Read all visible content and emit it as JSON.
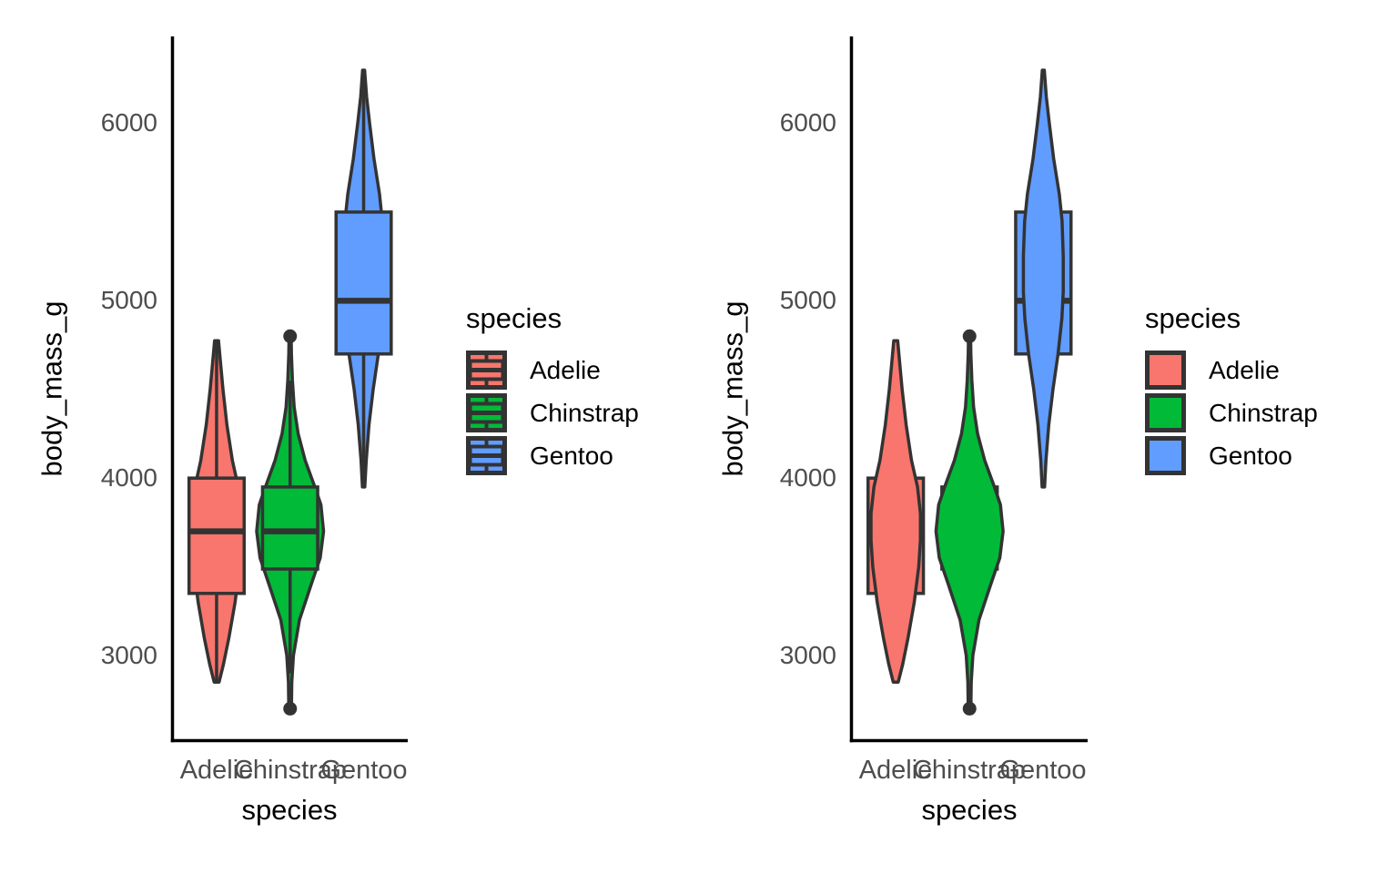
{
  "palette": {
    "adelie": "#F8766D",
    "chinstrap": "#00BA38",
    "gentoo": "#619CFF",
    "outline": "#333333",
    "axis_line": "#000000",
    "tick_label": "#4D4D4D",
    "title_text": "#000000",
    "background": "#FFFFFF"
  },
  "chart_data": [
    {
      "id": "left-panel",
      "type": "violin",
      "subtype": "violin with boxplot drawn on top",
      "layers": [
        "violin",
        "boxplot"
      ],
      "title": "",
      "xlabel": "species",
      "ylabel": "body_mass_g",
      "categories": [
        "Adelie",
        "Chinstrap",
        "Gentoo"
      ],
      "y_ticks": [
        6000,
        5000,
        4000,
        3000
      ],
      "ylim": [
        2520,
        6480
      ],
      "grid": "off",
      "legend": {
        "title": "species",
        "position": "right",
        "key_glyph": "boxplot-over-violin",
        "entries": [
          {
            "label": "Adelie",
            "color": "#F8766D"
          },
          {
            "label": "Chinstrap",
            "color": "#00BA38"
          },
          {
            "label": "Gentoo",
            "color": "#619CFF"
          }
        ]
      },
      "series": [
        {
          "name": "Adelie",
          "color": "#F8766D",
          "box": {
            "whisker_low": 2850,
            "q1": 3350,
            "median": 3700,
            "q3": 4000,
            "whisker_high": 4775,
            "outliers": []
          },
          "violin": {
            "min": 2850,
            "max": 4775,
            "max_width": 0.67,
            "profile": [
              [
                2850,
                0.1
              ],
              [
                2950,
                0.28
              ],
              [
                3100,
                0.5
              ],
              [
                3300,
                0.75
              ],
              [
                3500,
                0.93
              ],
              [
                3650,
                1.0
              ],
              [
                3800,
                1.0
              ],
              [
                3950,
                0.88
              ],
              [
                4100,
                0.64
              ],
              [
                4300,
                0.42
              ],
              [
                4500,
                0.26
              ],
              [
                4650,
                0.16
              ],
              [
                4775,
                0.08
              ]
            ]
          }
        },
        {
          "name": "Chinstrap",
          "color": "#00BA38",
          "box": {
            "whisker_low": 2900,
            "q1": 3487.5,
            "median": 3700,
            "q3": 3950,
            "whisker_high": 4550,
            "outliers": [
              2700,
              4800
            ]
          },
          "violin": {
            "min": 2700,
            "max": 4800,
            "max_width": 0.91,
            "profile": [
              [
                2700,
                0.04
              ],
              [
                2850,
                0.05
              ],
              [
                3000,
                0.1
              ],
              [
                3200,
                0.28
              ],
              [
                3400,
                0.63
              ],
              [
                3550,
                0.9
              ],
              [
                3700,
                1.0
              ],
              [
                3850,
                0.92
              ],
              [
                3950,
                0.74
              ],
              [
                4100,
                0.45
              ],
              [
                4250,
                0.24
              ],
              [
                4400,
                0.12
              ],
              [
                4550,
                0.07
              ],
              [
                4700,
                0.04
              ],
              [
                4800,
                0.03
              ]
            ]
          }
        },
        {
          "name": "Gentoo",
          "color": "#619CFF",
          "box": {
            "whisker_low": 3950,
            "q1": 4700,
            "median": 5000,
            "q3": 5500,
            "whisker_high": 6300,
            "outliers": []
          },
          "violin": {
            "min": 3950,
            "max": 6300,
            "max_width": 0.54,
            "profile": [
              [
                3950,
                0.06
              ],
              [
                4100,
                0.13
              ],
              [
                4300,
                0.27
              ],
              [
                4500,
                0.48
              ],
              [
                4700,
                0.74
              ],
              [
                4900,
                0.93
              ],
              [
                5050,
                1.0
              ],
              [
                5250,
                1.0
              ],
              [
                5450,
                0.94
              ],
              [
                5600,
                0.8
              ],
              [
                5800,
                0.52
              ],
              [
                6000,
                0.3
              ],
              [
                6150,
                0.15
              ],
              [
                6300,
                0.05
              ]
            ]
          }
        }
      ]
    },
    {
      "id": "right-panel",
      "type": "violin",
      "subtype": "boxplot with violin drawn on top",
      "layers": [
        "boxplot",
        "violin"
      ],
      "title": "",
      "xlabel": "species",
      "ylabel": "body_mass_g",
      "categories": [
        "Adelie",
        "Chinstrap",
        "Gentoo"
      ],
      "y_ticks": [
        6000,
        5000,
        4000,
        3000
      ],
      "ylim": [
        2520,
        6480
      ],
      "grid": "off",
      "legend": {
        "title": "species",
        "position": "right",
        "key_glyph": "violin-over-boxplot",
        "entries": [
          {
            "label": "Adelie",
            "color": "#F8766D"
          },
          {
            "label": "Chinstrap",
            "color": "#00BA38"
          },
          {
            "label": "Gentoo",
            "color": "#619CFF"
          }
        ]
      },
      "series": [
        {
          "name": "Adelie",
          "color": "#F8766D",
          "box": {
            "whisker_low": 2850,
            "q1": 3350,
            "median": 3700,
            "q3": 4000,
            "whisker_high": 4775,
            "outliers": []
          },
          "violin": {
            "min": 2850,
            "max": 4775,
            "max_width": 0.67,
            "profile": [
              [
                2850,
                0.1
              ],
              [
                2950,
                0.28
              ],
              [
                3100,
                0.5
              ],
              [
                3300,
                0.75
              ],
              [
                3500,
                0.93
              ],
              [
                3650,
                1.0
              ],
              [
                3800,
                1.0
              ],
              [
                3950,
                0.88
              ],
              [
                4100,
                0.64
              ],
              [
                4300,
                0.42
              ],
              [
                4500,
                0.26
              ],
              [
                4650,
                0.16
              ],
              [
                4775,
                0.08
              ]
            ]
          }
        },
        {
          "name": "Chinstrap",
          "color": "#00BA38",
          "box": {
            "whisker_low": 2900,
            "q1": 3487.5,
            "median": 3700,
            "q3": 3950,
            "whisker_high": 4550,
            "outliers": [
              2700,
              4800
            ]
          },
          "violin": {
            "min": 2700,
            "max": 4800,
            "max_width": 0.91,
            "profile": [
              [
                2700,
                0.04
              ],
              [
                2850,
                0.05
              ],
              [
                3000,
                0.1
              ],
              [
                3200,
                0.28
              ],
              [
                3400,
                0.63
              ],
              [
                3550,
                0.9
              ],
              [
                3700,
                1.0
              ],
              [
                3850,
                0.92
              ],
              [
                3950,
                0.74
              ],
              [
                4100,
                0.45
              ],
              [
                4250,
                0.24
              ],
              [
                4400,
                0.12
              ],
              [
                4550,
                0.07
              ],
              [
                4700,
                0.04
              ],
              [
                4800,
                0.03
              ]
            ]
          }
        },
        {
          "name": "Gentoo",
          "color": "#619CFF",
          "box": {
            "whisker_low": 3950,
            "q1": 4700,
            "median": 5000,
            "q3": 5500,
            "whisker_high": 6300,
            "outliers": []
          },
          "violin": {
            "min": 3950,
            "max": 6300,
            "max_width": 0.54,
            "profile": [
              [
                3950,
                0.06
              ],
              [
                4100,
                0.13
              ],
              [
                4300,
                0.27
              ],
              [
                4500,
                0.48
              ],
              [
                4700,
                0.74
              ],
              [
                4900,
                0.93
              ],
              [
                5050,
                1.0
              ],
              [
                5250,
                1.0
              ],
              [
                5450,
                0.94
              ],
              [
                5600,
                0.8
              ],
              [
                5800,
                0.52
              ],
              [
                6000,
                0.3
              ],
              [
                6150,
                0.15
              ],
              [
                6300,
                0.05
              ]
            ]
          }
        }
      ]
    }
  ]
}
